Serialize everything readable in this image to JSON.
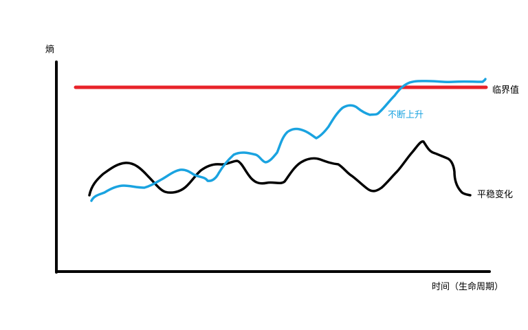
{
  "chart_data": {
    "type": "line",
    "ylabel": "熵",
    "xlabel": "时间（生命周期）",
    "grid": false,
    "ticks": "none",
    "colors": {
      "axis": "#000000",
      "threshold": "#e8232a",
      "rising": "#1aa3e0",
      "stable": "#000000",
      "text": "#000000",
      "rising_text": "#1aa3e0"
    },
    "series": [
      {
        "name": "临界值"
      },
      {
        "name": "不断上升"
      },
      {
        "name": "平稳变化"
      }
    ]
  }
}
